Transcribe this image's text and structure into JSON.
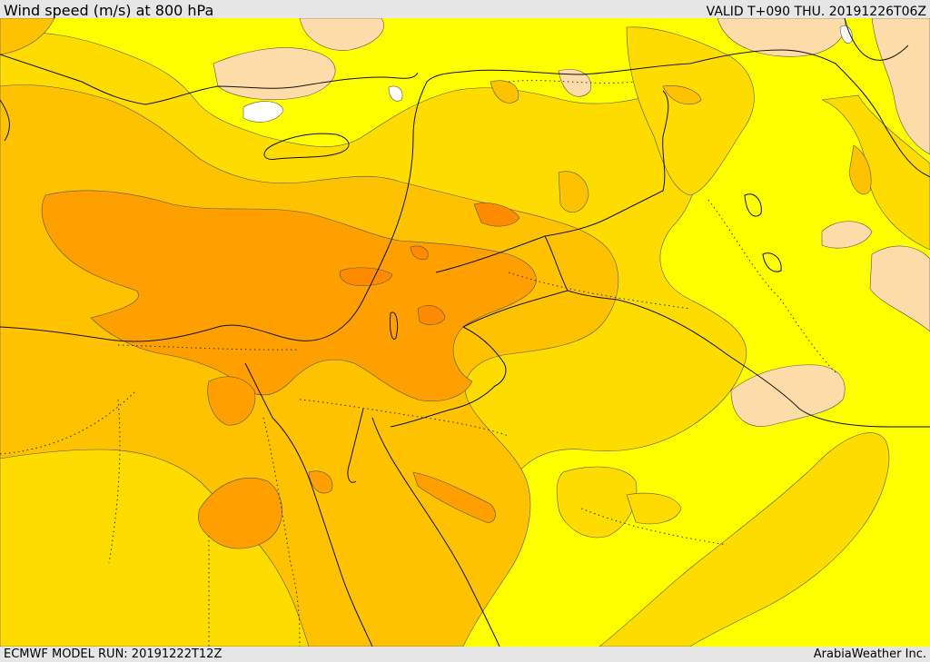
{
  "header": {
    "title": "Wind speed (m/s) at 800 hPa",
    "valid_time": "VALID T+090 THU. 20191226T06Z"
  },
  "footer": {
    "model_run": "ECMWF MODEL RUN: 20191222T12Z",
    "provider": "ArabiaWeather Inc."
  },
  "map": {
    "colors": {
      "calm": "#ffffff",
      "light": "#fedcaa",
      "low": "#ffff00",
      "moderate": "#ffdc00",
      "fresh": "#ffc200",
      "strong": "#ffa000",
      "very_strong": "#ff8c00"
    }
  }
}
